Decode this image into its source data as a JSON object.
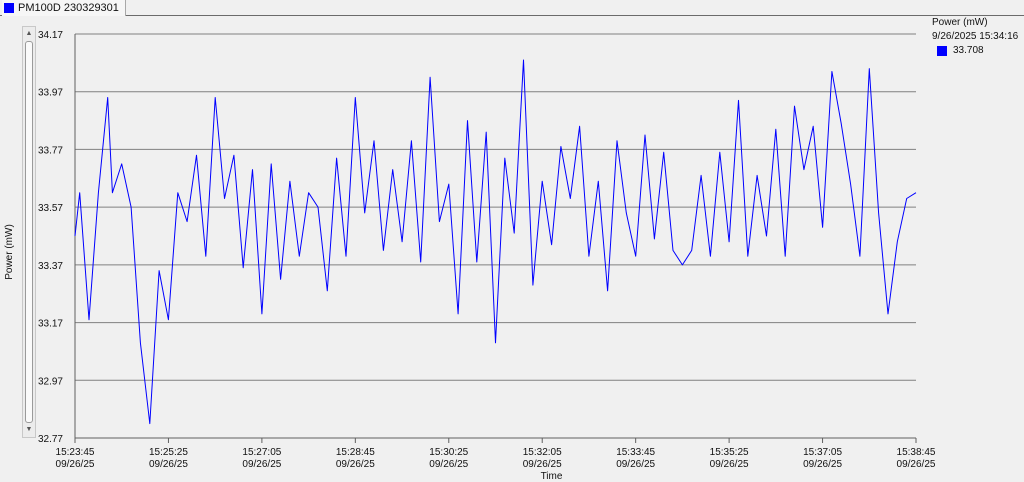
{
  "tab": {
    "label": "PM100D 230329301",
    "color": "#0000ff"
  },
  "legend": {
    "title": "Power (mW)",
    "timestamp": "9/26/2025 15:34:16",
    "value": "33.708",
    "color": "#0000ff"
  },
  "chart_data": {
    "type": "line",
    "xlabel": "Time",
    "ylabel": "Power (mW)",
    "ylim": [
      32.77,
      34.17
    ],
    "xlim": [
      "15:23:45",
      "15:38:45"
    ],
    "y_ticks": [
      "34.17",
      "33.97",
      "33.77",
      "33.57",
      "33.37",
      "33.17",
      "32.97",
      "32.77"
    ],
    "x_ticks": [
      {
        "time": "15:23:45",
        "date": "09/26/25"
      },
      {
        "time": "15:25:25",
        "date": "09/26/25"
      },
      {
        "time": "15:27:05",
        "date": "09/26/25"
      },
      {
        "time": "15:28:45",
        "date": "09/26/25"
      },
      {
        "time": "15:30:25",
        "date": "09/26/25"
      },
      {
        "time": "15:32:05",
        "date": "09/26/25"
      },
      {
        "time": "15:33:45",
        "date": "09/26/25"
      },
      {
        "time": "15:35:25",
        "date": "09/26/25"
      },
      {
        "time": "15:37:05",
        "date": "09/26/25"
      },
      {
        "time": "15:38:45",
        "date": "09/26/25"
      }
    ],
    "grid": true,
    "legend_position": "top-right",
    "series": [
      {
        "name": "Power (mW)",
        "color": "#0000ff",
        "x": [
          "15:23:45",
          "15:23:50",
          "15:24:00",
          "15:24:10",
          "15:24:20",
          "15:24:25",
          "15:24:35",
          "15:24:45",
          "15:24:55",
          "15:25:05",
          "15:25:15",
          "15:25:25",
          "15:25:35",
          "15:25:45",
          "15:25:55",
          "15:26:05",
          "15:26:15",
          "15:26:25",
          "15:26:35",
          "15:26:45",
          "15:26:55",
          "15:27:05",
          "15:27:15",
          "15:27:25",
          "15:27:35",
          "15:27:45",
          "15:27:55",
          "15:28:05",
          "15:28:15",
          "15:28:25",
          "15:28:35",
          "15:28:45",
          "15:28:55",
          "15:29:05",
          "15:29:15",
          "15:29:25",
          "15:29:35",
          "15:29:45",
          "15:29:55",
          "15:30:05",
          "15:30:15",
          "15:30:25",
          "15:30:35",
          "15:30:45",
          "15:30:55",
          "15:31:05",
          "15:31:15",
          "15:31:25",
          "15:31:35",
          "15:31:45",
          "15:31:55",
          "15:32:05",
          "15:32:15",
          "15:32:25",
          "15:32:35",
          "15:32:45",
          "15:32:55",
          "15:33:05",
          "15:33:15",
          "15:33:25",
          "15:33:35",
          "15:33:45",
          "15:33:55",
          "15:34:05",
          "15:34:15",
          "15:34:25",
          "15:34:35",
          "15:34:45",
          "15:34:55",
          "15:35:05",
          "15:35:15",
          "15:35:25",
          "15:35:35",
          "15:35:45",
          "15:35:55",
          "15:36:05",
          "15:36:15",
          "15:36:25",
          "15:36:35",
          "15:36:45",
          "15:36:55",
          "15:37:05",
          "15:37:15",
          "15:37:25",
          "15:37:35",
          "15:37:45",
          "15:37:55",
          "15:38:05",
          "15:38:15",
          "15:38:25",
          "15:38:35",
          "15:38:45"
        ],
        "y": [
          33.47,
          33.62,
          33.18,
          33.62,
          33.95,
          33.62,
          33.72,
          33.57,
          33.1,
          32.82,
          33.35,
          33.18,
          33.62,
          33.52,
          33.75,
          33.4,
          33.95,
          33.6,
          33.75,
          33.36,
          33.7,
          33.2,
          33.72,
          33.32,
          33.66,
          33.4,
          33.62,
          33.57,
          33.28,
          33.74,
          33.4,
          33.95,
          33.55,
          33.8,
          33.42,
          33.7,
          33.45,
          33.8,
          33.38,
          34.02,
          33.52,
          33.65,
          33.2,
          33.87,
          33.38,
          33.83,
          33.1,
          33.74,
          33.48,
          34.08,
          33.3,
          33.66,
          33.44,
          33.78,
          33.6,
          33.85,
          33.4,
          33.66,
          33.28,
          33.8,
          33.55,
          33.4,
          33.82,
          33.46,
          33.76,
          33.42,
          33.37,
          33.42,
          33.68,
          33.4,
          33.76,
          33.45,
          33.94,
          33.4,
          33.68,
          33.47,
          33.84,
          33.4,
          33.92,
          33.7,
          33.85,
          33.5,
          34.04,
          33.86,
          33.65,
          33.4,
          34.05,
          33.55,
          33.2,
          33.45,
          33.6,
          33.62
        ]
      }
    ]
  }
}
